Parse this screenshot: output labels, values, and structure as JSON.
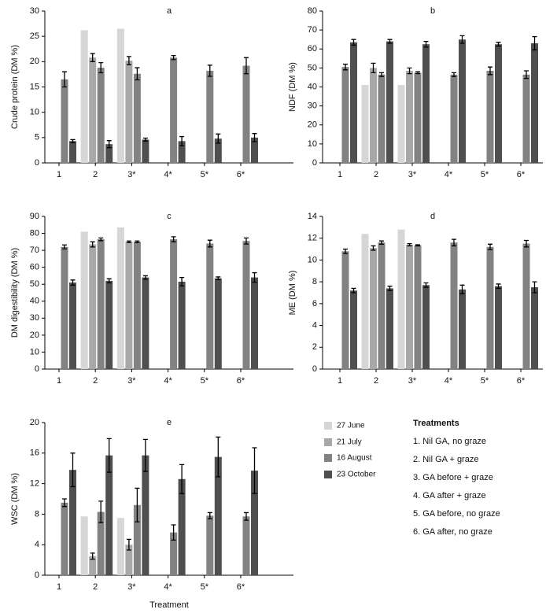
{
  "chart_data": [
    {
      "type": "bar",
      "title": "a",
      "y_label": "Crude protein (DM %)",
      "categories": [
        "1",
        "2",
        "3*",
        "4*",
        "5*",
        "6*"
      ],
      "ylim": [
        0,
        30
      ],
      "yticks": [
        0,
        5,
        10,
        15,
        20,
        25,
        30
      ],
      "series": [
        {
          "values": [
            null,
            26.2,
            26.5,
            null,
            null,
            null
          ],
          "errors": [
            null,
            null,
            null,
            null,
            null,
            null
          ]
        },
        {
          "values": [
            null,
            20.8,
            20.2,
            null,
            null,
            null
          ],
          "errors": [
            null,
            0.8,
            0.8,
            null,
            null,
            null
          ]
        },
        {
          "values": [
            16.5,
            18.8,
            17.6,
            20.8,
            18.2,
            19.2
          ],
          "errors": [
            1.5,
            1.0,
            1.2,
            0.4,
            1.1,
            1.6
          ]
        },
        {
          "values": [
            4.3,
            3.7,
            4.6,
            4.3,
            4.8,
            5.0
          ],
          "errors": [
            0.3,
            0.7,
            0.3,
            0.9,
            0.9,
            0.8
          ]
        }
      ]
    },
    {
      "type": "bar",
      "title": "b",
      "y_label": "NDF (DM %)",
      "categories": [
        "1",
        "2",
        "3*",
        "4*",
        "5*",
        "6*"
      ],
      "ylim": [
        0,
        80
      ],
      "yticks": [
        0,
        10,
        20,
        30,
        40,
        50,
        60,
        70,
        80
      ],
      "series": [
        {
          "values": [
            null,
            41,
            41,
            null,
            null,
            null
          ],
          "errors": [
            null,
            null,
            null,
            null,
            null,
            null
          ]
        },
        {
          "values": [
            null,
            50,
            48.5,
            null,
            null,
            null
          ],
          "errors": [
            null,
            2.5,
            1.5,
            null,
            null,
            null
          ]
        },
        {
          "values": [
            50.5,
            46.5,
            47.5,
            46.5,
            48.5,
            46.5
          ],
          "errors": [
            1.5,
            1,
            0.5,
            1,
            2,
            2
          ]
        },
        {
          "values": [
            63.5,
            64,
            62.5,
            65,
            62.5,
            63
          ],
          "errors": [
            1.5,
            1,
            1.5,
            2,
            1,
            3.5
          ]
        }
      ]
    },
    {
      "type": "bar",
      "title": "c",
      "y_label": "DM digestibility (DM %)",
      "categories": [
        "1",
        "2",
        "3*",
        "4*",
        "5*",
        "6*"
      ],
      "ylim": [
        0,
        90
      ],
      "yticks": [
        0,
        10,
        20,
        30,
        40,
        50,
        60,
        70,
        80,
        90
      ],
      "series": [
        {
          "values": [
            null,
            81,
            83.5,
            null,
            null,
            null
          ],
          "errors": [
            null,
            null,
            null,
            null,
            null,
            null
          ]
        },
        {
          "values": [
            null,
            73.5,
            75,
            null,
            null,
            null
          ],
          "errors": [
            null,
            1.5,
            0.5,
            null,
            null,
            null
          ]
        },
        {
          "values": [
            72,
            76.5,
            75,
            76.5,
            74,
            75.5
          ],
          "errors": [
            1.2,
            0.8,
            0.5,
            1.5,
            2,
            1.8
          ]
        },
        {
          "values": [
            51,
            52,
            54,
            51.5,
            53.5,
            54
          ],
          "errors": [
            1.5,
            1.2,
            1,
            2.5,
            0.8,
            2.8
          ]
        }
      ]
    },
    {
      "type": "bar",
      "title": "d",
      "y_label": "ME (DM %)",
      "categories": [
        "1",
        "2",
        "3*",
        "4*",
        "5*",
        "6*"
      ],
      "ylim": [
        0,
        14
      ],
      "yticks": [
        0,
        2,
        4,
        6,
        8,
        10,
        12,
        14
      ],
      "series": [
        {
          "values": [
            null,
            12.4,
            12.8,
            null,
            null,
            null
          ],
          "errors": [
            null,
            null,
            null,
            null,
            null,
            null
          ]
        },
        {
          "values": [
            null,
            11.1,
            11.4,
            null,
            null,
            null
          ],
          "errors": [
            null,
            0.2,
            0.1,
            null,
            null,
            null
          ]
        },
        {
          "values": [
            10.8,
            11.6,
            11.35,
            11.6,
            11.2,
            11.5
          ],
          "errors": [
            0.2,
            0.15,
            0.05,
            0.3,
            0.25,
            0.3
          ]
        },
        {
          "values": [
            7.2,
            7.4,
            7.7,
            7.3,
            7.6,
            7.5
          ],
          "errors": [
            0.2,
            0.2,
            0.2,
            0.4,
            0.2,
            0.5
          ]
        }
      ]
    },
    {
      "type": "bar",
      "title": "e",
      "y_label": "WSC (DM %)",
      "x_label": "Treatment",
      "categories": [
        "1",
        "2",
        "3*",
        "4*",
        "5*",
        "6*"
      ],
      "ylim": [
        0,
        20
      ],
      "yticks": [
        0,
        4,
        8,
        12,
        16,
        20
      ],
      "series": [
        {
          "values": [
            null,
            7.7,
            7.5,
            null,
            null,
            null
          ],
          "errors": [
            null,
            null,
            null,
            null,
            null,
            null
          ]
        },
        {
          "values": [
            null,
            2.5,
            4.0,
            null,
            null,
            null
          ],
          "errors": [
            null,
            0.4,
            0.7,
            null,
            null,
            null
          ]
        },
        {
          "values": [
            9.5,
            8.3,
            9.2,
            5.6,
            7.8,
            7.7
          ],
          "errors": [
            0.5,
            1.4,
            2.2,
            1,
            0.4,
            0.5
          ]
        },
        {
          "values": [
            13.8,
            15.7,
            15.7,
            12.6,
            15.5,
            13.7
          ],
          "errors": [
            2.2,
            2.2,
            2.1,
            1.9,
            2.6,
            3
          ]
        }
      ]
    }
  ],
  "legend": [
    {
      "name": "27 June",
      "color": "#d6d6d6"
    },
    {
      "name": "21 July",
      "color": "#a8a8a8"
    },
    {
      "name": "16 August",
      "color": "#828282"
    },
    {
      "name": "23 October",
      "color": "#4f4f4f"
    }
  ],
  "treatments": {
    "title": "Treatments",
    "items": [
      "1. Nil GA, no graze",
      "2. Nil GA + graze",
      "3. GA before + graze",
      "4. GA after + graze",
      "5. GA before, no graze",
      "6. GA after, no graze"
    ]
  }
}
